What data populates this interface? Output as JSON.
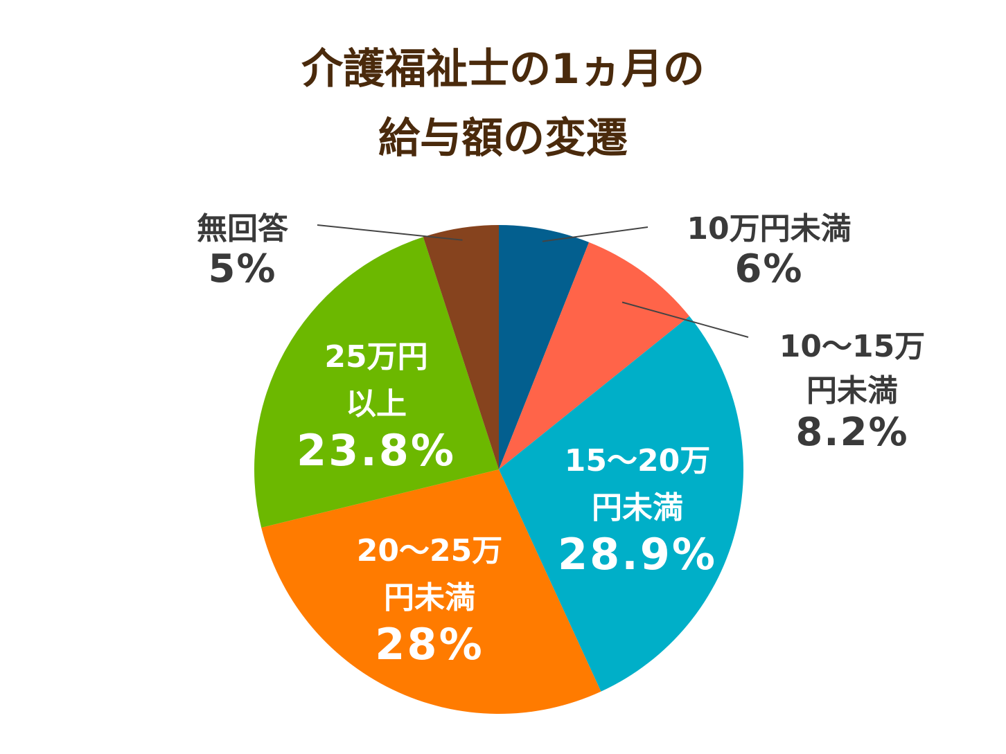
{
  "chart_data": {
    "type": "pie",
    "title_lines": [
      "介護福祉士の1ヵ月の",
      "給与額の変遷"
    ],
    "slices": [
      {
        "label_lines": [
          "10万円未満"
        ],
        "value": 6,
        "value_text": "6%",
        "color": "#035f8f"
      },
      {
        "label_lines": [
          "10～15万",
          "円未満"
        ],
        "value": 8.2,
        "value_text": "8.2%",
        "color": "#ff6449"
      },
      {
        "label_lines": [
          "15～20万",
          "円未満"
        ],
        "value": 28.9,
        "value_text": "28.9%",
        "color": "#00afc8"
      },
      {
        "label_lines": [
          "20～25万",
          "円未満"
        ],
        "value": 28,
        "value_text": "28%",
        "color": "#ff7b00"
      },
      {
        "label_lines": [
          "25万円",
          "以上"
        ],
        "value": 23.8,
        "value_text": "23.8%",
        "color": "#6cb800"
      },
      {
        "label_lines": [
          "無回答"
        ],
        "value": 5,
        "value_text": "5%",
        "color": "#86431e"
      }
    ]
  }
}
